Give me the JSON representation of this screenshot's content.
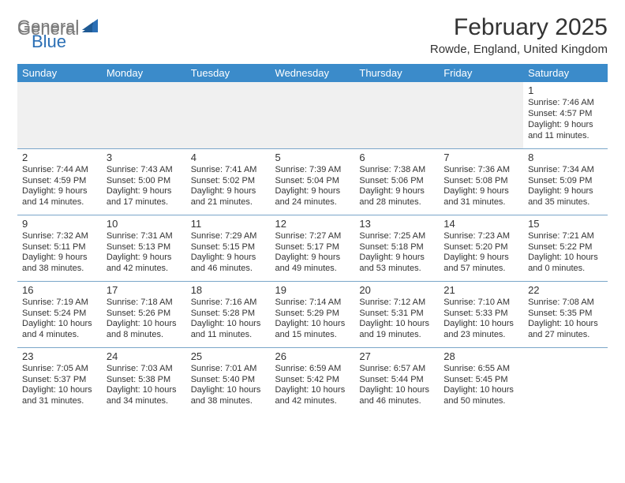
{
  "header": {
    "logo_text_gray": "General",
    "logo_text_blue": "Blue",
    "month_title": "February 2025",
    "location": "Rowde, England, United Kingdom"
  },
  "calendar": {
    "day_headers": [
      "Sunday",
      "Monday",
      "Tuesday",
      "Wednesday",
      "Thursday",
      "Friday",
      "Saturday"
    ],
    "header_bg": "#3b8bca",
    "header_fg": "#ffffff",
    "border_color": "#7aa6c9",
    "empty_bg": "#f0f0f0",
    "weeks": [
      [
        null,
        null,
        null,
        null,
        null,
        null,
        {
          "n": "1",
          "sr": "7:46 AM",
          "ss": "4:57 PM",
          "dl": "9 hours and 11 minutes."
        }
      ],
      [
        {
          "n": "2",
          "sr": "7:44 AM",
          "ss": "4:59 PM",
          "dl": "9 hours and 14 minutes."
        },
        {
          "n": "3",
          "sr": "7:43 AM",
          "ss": "5:00 PM",
          "dl": "9 hours and 17 minutes."
        },
        {
          "n": "4",
          "sr": "7:41 AM",
          "ss": "5:02 PM",
          "dl": "9 hours and 21 minutes."
        },
        {
          "n": "5",
          "sr": "7:39 AM",
          "ss": "5:04 PM",
          "dl": "9 hours and 24 minutes."
        },
        {
          "n": "6",
          "sr": "7:38 AM",
          "ss": "5:06 PM",
          "dl": "9 hours and 28 minutes."
        },
        {
          "n": "7",
          "sr": "7:36 AM",
          "ss": "5:08 PM",
          "dl": "9 hours and 31 minutes."
        },
        {
          "n": "8",
          "sr": "7:34 AM",
          "ss": "5:09 PM",
          "dl": "9 hours and 35 minutes."
        }
      ],
      [
        {
          "n": "9",
          "sr": "7:32 AM",
          "ss": "5:11 PM",
          "dl": "9 hours and 38 minutes."
        },
        {
          "n": "10",
          "sr": "7:31 AM",
          "ss": "5:13 PM",
          "dl": "9 hours and 42 minutes."
        },
        {
          "n": "11",
          "sr": "7:29 AM",
          "ss": "5:15 PM",
          "dl": "9 hours and 46 minutes."
        },
        {
          "n": "12",
          "sr": "7:27 AM",
          "ss": "5:17 PM",
          "dl": "9 hours and 49 minutes."
        },
        {
          "n": "13",
          "sr": "7:25 AM",
          "ss": "5:18 PM",
          "dl": "9 hours and 53 minutes."
        },
        {
          "n": "14",
          "sr": "7:23 AM",
          "ss": "5:20 PM",
          "dl": "9 hours and 57 minutes."
        },
        {
          "n": "15",
          "sr": "7:21 AM",
          "ss": "5:22 PM",
          "dl": "10 hours and 0 minutes."
        }
      ],
      [
        {
          "n": "16",
          "sr": "7:19 AM",
          "ss": "5:24 PM",
          "dl": "10 hours and 4 minutes."
        },
        {
          "n": "17",
          "sr": "7:18 AM",
          "ss": "5:26 PM",
          "dl": "10 hours and 8 minutes."
        },
        {
          "n": "18",
          "sr": "7:16 AM",
          "ss": "5:28 PM",
          "dl": "10 hours and 11 minutes."
        },
        {
          "n": "19",
          "sr": "7:14 AM",
          "ss": "5:29 PM",
          "dl": "10 hours and 15 minutes."
        },
        {
          "n": "20",
          "sr": "7:12 AM",
          "ss": "5:31 PM",
          "dl": "10 hours and 19 minutes."
        },
        {
          "n": "21",
          "sr": "7:10 AM",
          "ss": "5:33 PM",
          "dl": "10 hours and 23 minutes."
        },
        {
          "n": "22",
          "sr": "7:08 AM",
          "ss": "5:35 PM",
          "dl": "10 hours and 27 minutes."
        }
      ],
      [
        {
          "n": "23",
          "sr": "7:05 AM",
          "ss": "5:37 PM",
          "dl": "10 hours and 31 minutes."
        },
        {
          "n": "24",
          "sr": "7:03 AM",
          "ss": "5:38 PM",
          "dl": "10 hours and 34 minutes."
        },
        {
          "n": "25",
          "sr": "7:01 AM",
          "ss": "5:40 PM",
          "dl": "10 hours and 38 minutes."
        },
        {
          "n": "26",
          "sr": "6:59 AM",
          "ss": "5:42 PM",
          "dl": "10 hours and 42 minutes."
        },
        {
          "n": "27",
          "sr": "6:57 AM",
          "ss": "5:44 PM",
          "dl": "10 hours and 46 minutes."
        },
        {
          "n": "28",
          "sr": "6:55 AM",
          "ss": "5:45 PM",
          "dl": "10 hours and 50 minutes."
        },
        null
      ]
    ],
    "labels": {
      "sunrise": "Sunrise:",
      "sunset": "Sunset:",
      "daylight": "Daylight:"
    }
  }
}
